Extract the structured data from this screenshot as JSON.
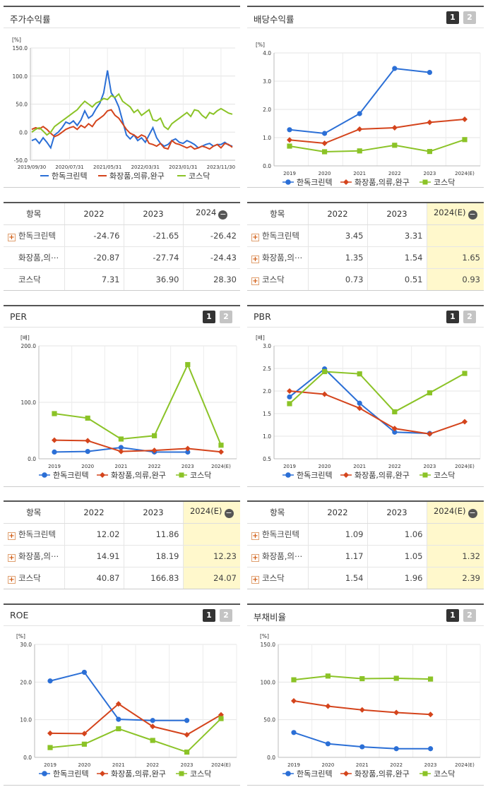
{
  "legend": [
    "한독크린텍",
    "화장품,의류,완구",
    "코스닥"
  ],
  "colors": [
    "#2b6fd6",
    "#d4441c",
    "#8bc327"
  ],
  "panels": {
    "price": {
      "title": "주가수익률",
      "unit": "[%]",
      "chart_data": {
        "type": "line",
        "ylim": [
          -50,
          150
        ],
        "yticks": [
          "150.0",
          "100.0",
          "50.0",
          "0.0",
          "-50.0"
        ],
        "xlabels": [
          "2019/09/30",
          "2020/07/31",
          "2021/05/31",
          "2022/03/31",
          "2023/01/31",
          "2023/11/30"
        ],
        "xlim": [
          0,
          53
        ],
        "x_tick_positions": [
          0,
          10,
          20,
          30,
          40,
          50
        ],
        "series": [
          {
            "name": "한독크린텍",
            "values": [
              -15,
              -12,
              -20,
              -10,
              -18,
              -28,
              -5,
              0,
              8,
              18,
              15,
              20,
              12,
              22,
              38,
              25,
              30,
              42,
              52,
              70,
              110,
              70,
              60,
              45,
              20,
              -5,
              -12,
              -5,
              -15,
              -10,
              -18,
              -5,
              8,
              -10,
              -20,
              -25,
              -22,
              -15,
              -12,
              -18,
              -20,
              -15,
              -18,
              -22,
              -28,
              -25,
              -22,
              -20,
              -25,
              -22,
              -22,
              -18,
              -23,
              -25
            ]
          },
          {
            "name": "화장품,의류,완구",
            "values": [
              5,
              8,
              6,
              10,
              5,
              -2,
              -8,
              -5,
              0,
              5,
              8,
              10,
              5,
              12,
              8,
              15,
              10,
              20,
              25,
              30,
              38,
              40,
              30,
              25,
              15,
              5,
              -2,
              -5,
              -10,
              -5,
              -8,
              -20,
              -22,
              -25,
              -20,
              -28,
              -30,
              -15,
              -20,
              -22,
              -25,
              -28,
              -25,
              -30,
              -28,
              -25,
              -27,
              -30,
              -25,
              -22,
              -28,
              -20,
              -22,
              -27
            ]
          },
          {
            "name": "코스닥",
            "values": [
              0,
              5,
              8,
              2,
              -5,
              0,
              10,
              15,
              20,
              25,
              30,
              35,
              40,
              48,
              55,
              50,
              45,
              52,
              55,
              60,
              58,
              65,
              62,
              68,
              55,
              50,
              45,
              35,
              40,
              30,
              35,
              40,
              22,
              20,
              25,
              10,
              5,
              15,
              20,
              25,
              30,
              35,
              28,
              40,
              38,
              30,
              25,
              35,
              32,
              38,
              42,
              38,
              34,
              32
            ]
          }
        ]
      }
    },
    "dividend": {
      "title": "배당수익률",
      "unit": "[%]",
      "chart_data": {
        "type": "line",
        "ylim": [
          0,
          4
        ],
        "yticks": [
          "4.0",
          "3.0",
          "2.0",
          "1.0",
          "0.0"
        ],
        "categories": [
          "2019",
          "2020",
          "2021",
          "2022",
          "2023",
          "2024(E)"
        ],
        "series": [
          {
            "name": "한독크린텍",
            "values": [
              1.28,
              1.15,
              1.85,
              3.45,
              3.31,
              null
            ]
          },
          {
            "name": "화장품,의류,완구",
            "values": [
              0.92,
              0.8,
              1.3,
              1.35,
              1.54,
              1.65
            ]
          },
          {
            "name": "코스닥",
            "values": [
              0.7,
              0.5,
              0.53,
              0.73,
              0.51,
              0.93
            ]
          }
        ]
      }
    },
    "per": {
      "title": "PER",
      "unit": "[배]",
      "chart_data": {
        "type": "line",
        "ylim": [
          0,
          200
        ],
        "yticks": [
          "200.0",
          "100.0",
          "0.0"
        ],
        "categories": [
          "2019",
          "2020",
          "2021",
          "2022",
          "2023",
          "2024(E)"
        ],
        "series": [
          {
            "name": "한독크린텍",
            "values": [
              12,
              13,
              20,
              12.02,
              11.86,
              null
            ]
          },
          {
            "name": "화장품,의류,완구",
            "values": [
              33,
              32,
              13,
              14.91,
              18.19,
              12.23
            ]
          },
          {
            "name": "코스닥",
            "values": [
              80,
              72,
              35,
              40.87,
              166.83,
              24.07
            ]
          }
        ]
      }
    },
    "pbr": {
      "title": "PBR",
      "unit": "[배]",
      "chart_data": {
        "type": "line",
        "ylim": [
          0.5,
          3.0
        ],
        "yticks": [
          "3.0",
          "2.5",
          "2.0",
          "1.5",
          "1.0",
          "0.5"
        ],
        "categories": [
          "2019",
          "2020",
          "2021",
          "2022",
          "2023",
          "2024(E)"
        ],
        "series": [
          {
            "name": "한독크린텍",
            "values": [
              1.87,
              2.49,
              1.73,
              1.09,
              1.06,
              null
            ]
          },
          {
            "name": "화장품,의류,완구",
            "values": [
              2.0,
              1.93,
              1.62,
              1.17,
              1.05,
              1.32
            ]
          },
          {
            "name": "코스닥",
            "values": [
              1.72,
              2.43,
              2.38,
              1.54,
              1.96,
              2.39
            ]
          }
        ]
      }
    },
    "roe": {
      "title": "ROE",
      "unit": "[%]",
      "chart_data": {
        "type": "line",
        "ylim": [
          0,
          30
        ],
        "yticks": [
          "30.0",
          "20.0",
          "10.0",
          "0.0"
        ],
        "categories": [
          "2019",
          "2020",
          "2021",
          "2022",
          "2023",
          "2024(E)"
        ],
        "series": [
          {
            "name": "한독크린텍",
            "values": [
              20.3,
              22.6,
              10.1,
              9.8,
              9.8,
              null
            ]
          },
          {
            "name": "화장품,의류,완구",
            "values": [
              6.4,
              6.3,
              14.2,
              8.2,
              6.0,
              11.3
            ]
          },
          {
            "name": "코스닥",
            "values": [
              2.6,
              3.5,
              7.6,
              4.5,
              1.4,
              10.3
            ]
          }
        ]
      }
    },
    "debt": {
      "title": "부채비율",
      "unit": "[%]",
      "chart_data": {
        "type": "line",
        "ylim": [
          0,
          150
        ],
        "yticks": [
          "150.0",
          "100.0",
          "50.0",
          "0.0"
        ],
        "categories": [
          "2019",
          "2020",
          "2021",
          "2022",
          "2023",
          "2024(E)"
        ],
        "series": [
          {
            "name": "한독크린텍",
            "values": [
              33,
              18,
              14,
              11.5,
              11.5,
              null
            ]
          },
          {
            "name": "화장품,의류,완구",
            "values": [
              75,
              68,
              63,
              59.5,
              57,
              null
            ]
          },
          {
            "name": "코스닥",
            "values": [
              103,
              108,
              104.5,
              105,
              104,
              null
            ]
          }
        ]
      }
    }
  },
  "tables": {
    "price": {
      "header": [
        "항목",
        "2022",
        "2023",
        "2024"
      ],
      "rows": [
        {
          "plus": true,
          "name": "한독크린텍",
          "values": [
            "-24.76",
            "-21.65",
            "-26.42"
          ]
        },
        {
          "plus": false,
          "name": "화장품,의⋯",
          "values": [
            "-20.87",
            "-27.74",
            "-24.43"
          ]
        },
        {
          "plus": false,
          "name": "코스닥",
          "values": [
            "7.31",
            "36.90",
            "28.30"
          ]
        }
      ]
    },
    "dividend": {
      "header": [
        "항목",
        "2022",
        "2023",
        "2024(E)"
      ],
      "rows": [
        {
          "plus": true,
          "name": "한독크린텍",
          "values": [
            "3.45",
            "3.31",
            ""
          ]
        },
        {
          "plus": true,
          "name": "화장품,의⋯",
          "values": [
            "1.35",
            "1.54",
            "1.65"
          ]
        },
        {
          "plus": true,
          "name": "코스닥",
          "values": [
            "0.73",
            "0.51",
            "0.93"
          ]
        }
      ]
    },
    "per": {
      "header": [
        "항목",
        "2022",
        "2023",
        "2024(E)"
      ],
      "rows": [
        {
          "plus": true,
          "name": "한독크린텍",
          "values": [
            "12.02",
            "11.86",
            ""
          ]
        },
        {
          "plus": true,
          "name": "화장품,의⋯",
          "values": [
            "14.91",
            "18.19",
            "12.23"
          ]
        },
        {
          "plus": true,
          "name": "코스닥",
          "values": [
            "40.87",
            "166.83",
            "24.07"
          ]
        }
      ]
    },
    "pbr": {
      "header": [
        "항목",
        "2022",
        "2023",
        "2024(E)"
      ],
      "rows": [
        {
          "plus": true,
          "name": "한독크린텍",
          "values": [
            "1.09",
            "1.06",
            ""
          ]
        },
        {
          "plus": true,
          "name": "화장품,의⋯",
          "values": [
            "1.17",
            "1.05",
            "1.32"
          ]
        },
        {
          "plus": true,
          "name": "코스닥",
          "values": [
            "1.54",
            "1.96",
            "2.39"
          ]
        }
      ]
    }
  },
  "page_buttons": [
    "1",
    "2"
  ]
}
